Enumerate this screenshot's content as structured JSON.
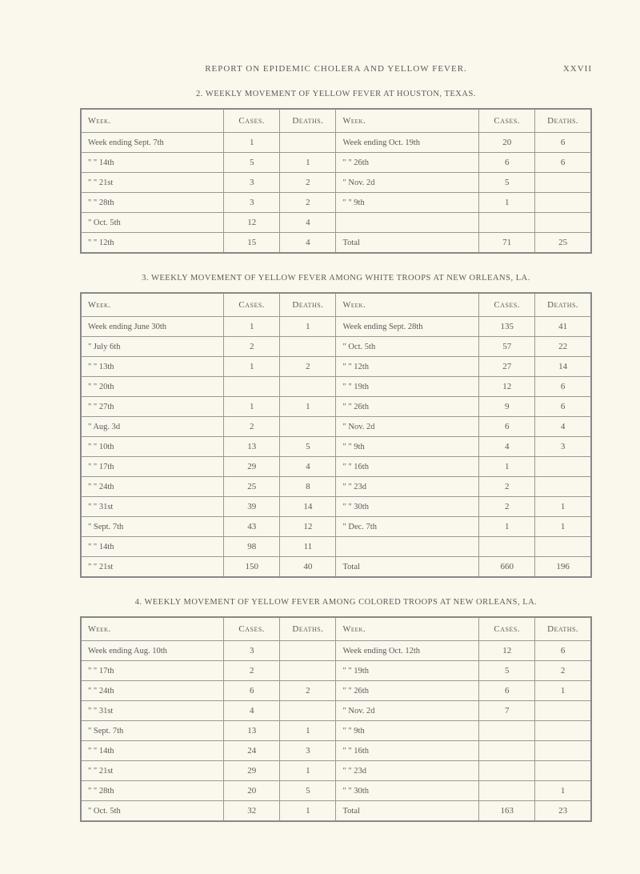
{
  "page_header": "REPORT ON EPIDEMIC CHOLERA AND YELLOW FEVER.",
  "page_number": "XXVII",
  "table2": {
    "title": "2. WEEKLY MOVEMENT OF YELLOW FEVER AT HOUSTON, TEXAS.",
    "headers": {
      "week": "Week.",
      "cases": "Cases.",
      "deaths": "Deaths."
    },
    "left": [
      {
        "week": "Week ending Sept. 7th",
        "cases": "1",
        "deaths": ""
      },
      {
        "week": "\"     \"   14th",
        "cases": "5",
        "deaths": "1"
      },
      {
        "week": "\"     \"   21st",
        "cases": "3",
        "deaths": "2"
      },
      {
        "week": "\"     \"   28th",
        "cases": "3",
        "deaths": "2"
      },
      {
        "week": "\"    Oct.  5th",
        "cases": "12",
        "deaths": "4"
      },
      {
        "week": "\"     \"   12th",
        "cases": "15",
        "deaths": "4"
      }
    ],
    "right": [
      {
        "week": "Week ending Oct. 19th",
        "cases": "20",
        "deaths": "6"
      },
      {
        "week": "\"     \"   26th",
        "cases": "6",
        "deaths": "6"
      },
      {
        "week": "\"    Nov.  2d",
        "cases": "5",
        "deaths": ""
      },
      {
        "week": "\"     \"    9th",
        "cases": "1",
        "deaths": ""
      },
      {
        "week": "",
        "cases": "",
        "deaths": ""
      },
      {
        "week": "Total",
        "cases": "71",
        "deaths": "25"
      }
    ]
  },
  "table3": {
    "title": "3. WEEKLY MOVEMENT OF YELLOW FEVER AMONG WHITE TROOPS AT NEW ORLEANS, LA.",
    "headers": {
      "week": "Week.",
      "cases": "Cases.",
      "deaths": "Deaths."
    },
    "left": [
      {
        "week": "Week ending June 30th",
        "cases": "1",
        "deaths": "1"
      },
      {
        "week": "\"    July  6th",
        "cases": "2",
        "deaths": ""
      },
      {
        "week": "\"     \"   13th",
        "cases": "1",
        "deaths": "2"
      },
      {
        "week": "\"     \"   20th",
        "cases": "",
        "deaths": ""
      },
      {
        "week": "\"     \"   27th",
        "cases": "1",
        "deaths": "1"
      },
      {
        "week": "\"    Aug.  3d",
        "cases": "2",
        "deaths": ""
      },
      {
        "week": "\"     \"   10th",
        "cases": "13",
        "deaths": "5"
      },
      {
        "week": "\"     \"   17th",
        "cases": "29",
        "deaths": "4"
      },
      {
        "week": "\"     \"   24th",
        "cases": "25",
        "deaths": "8"
      },
      {
        "week": "\"     \"   31st",
        "cases": "39",
        "deaths": "14"
      },
      {
        "week": "\"    Sept. 7th",
        "cases": "43",
        "deaths": "12"
      },
      {
        "week": "\"     \"   14th",
        "cases": "98",
        "deaths": "11"
      },
      {
        "week": "\"     \"   21st",
        "cases": "150",
        "deaths": "40"
      }
    ],
    "right": [
      {
        "week": "Week ending Sept. 28th",
        "cases": "135",
        "deaths": "41"
      },
      {
        "week": "\"    Oct.  5th",
        "cases": "57",
        "deaths": "22"
      },
      {
        "week": "\"     \"   12th",
        "cases": "27",
        "deaths": "14"
      },
      {
        "week": "\"     \"   19th",
        "cases": "12",
        "deaths": "6"
      },
      {
        "week": "\"     \"   26th",
        "cases": "9",
        "deaths": "6"
      },
      {
        "week": "\"    Nov.  2d",
        "cases": "6",
        "deaths": "4"
      },
      {
        "week": "\"     \"    9th",
        "cases": "4",
        "deaths": "3"
      },
      {
        "week": "\"     \"   16th",
        "cases": "1",
        "deaths": ""
      },
      {
        "week": "\"     \"   23d",
        "cases": "2",
        "deaths": ""
      },
      {
        "week": "\"     \"   30th",
        "cases": "2",
        "deaths": "1"
      },
      {
        "week": "\"    Dec.  7th",
        "cases": "1",
        "deaths": "1"
      },
      {
        "week": "",
        "cases": "",
        "deaths": ""
      },
      {
        "week": "Total",
        "cases": "660",
        "deaths": "196"
      }
    ]
  },
  "table4": {
    "title": "4. WEEKLY MOVEMENT OF YELLOW FEVER AMONG COLORED TROOPS AT NEW ORLEANS, LA.",
    "headers": {
      "week": "Week.",
      "cases": "Cases.",
      "deaths": "Deaths."
    },
    "left": [
      {
        "week": "Week ending Aug. 10th",
        "cases": "3",
        "deaths": ""
      },
      {
        "week": "\"     \"   17th",
        "cases": "2",
        "deaths": ""
      },
      {
        "week": "\"     \"   24th",
        "cases": "6",
        "deaths": "2"
      },
      {
        "week": "\"     \"   31st",
        "cases": "4",
        "deaths": ""
      },
      {
        "week": "\"    Sept. 7th",
        "cases": "13",
        "deaths": "1"
      },
      {
        "week": "\"     \"   14th",
        "cases": "24",
        "deaths": "3"
      },
      {
        "week": "\"     \"   21st",
        "cases": "29",
        "deaths": "1"
      },
      {
        "week": "\"     \"   28th",
        "cases": "20",
        "deaths": "5"
      },
      {
        "week": "\"    Oct.  5th",
        "cases": "32",
        "deaths": "1"
      }
    ],
    "right": [
      {
        "week": "Week ending Oct. 12th",
        "cases": "12",
        "deaths": "6"
      },
      {
        "week": "\"     \"   19th",
        "cases": "5",
        "deaths": "2"
      },
      {
        "week": "\"     \"   26th",
        "cases": "6",
        "deaths": "1"
      },
      {
        "week": "\"    Nov.  2d",
        "cases": "7",
        "deaths": ""
      },
      {
        "week": "\"     \"    9th",
        "cases": "",
        "deaths": ""
      },
      {
        "week": "\"     \"   16th",
        "cases": "",
        "deaths": ""
      },
      {
        "week": "\"     \"   23d",
        "cases": "",
        "deaths": ""
      },
      {
        "week": "\"     \"   30th",
        "cases": "",
        "deaths": "1"
      },
      {
        "week": "Total",
        "cases": "163",
        "deaths": "23"
      }
    ]
  }
}
